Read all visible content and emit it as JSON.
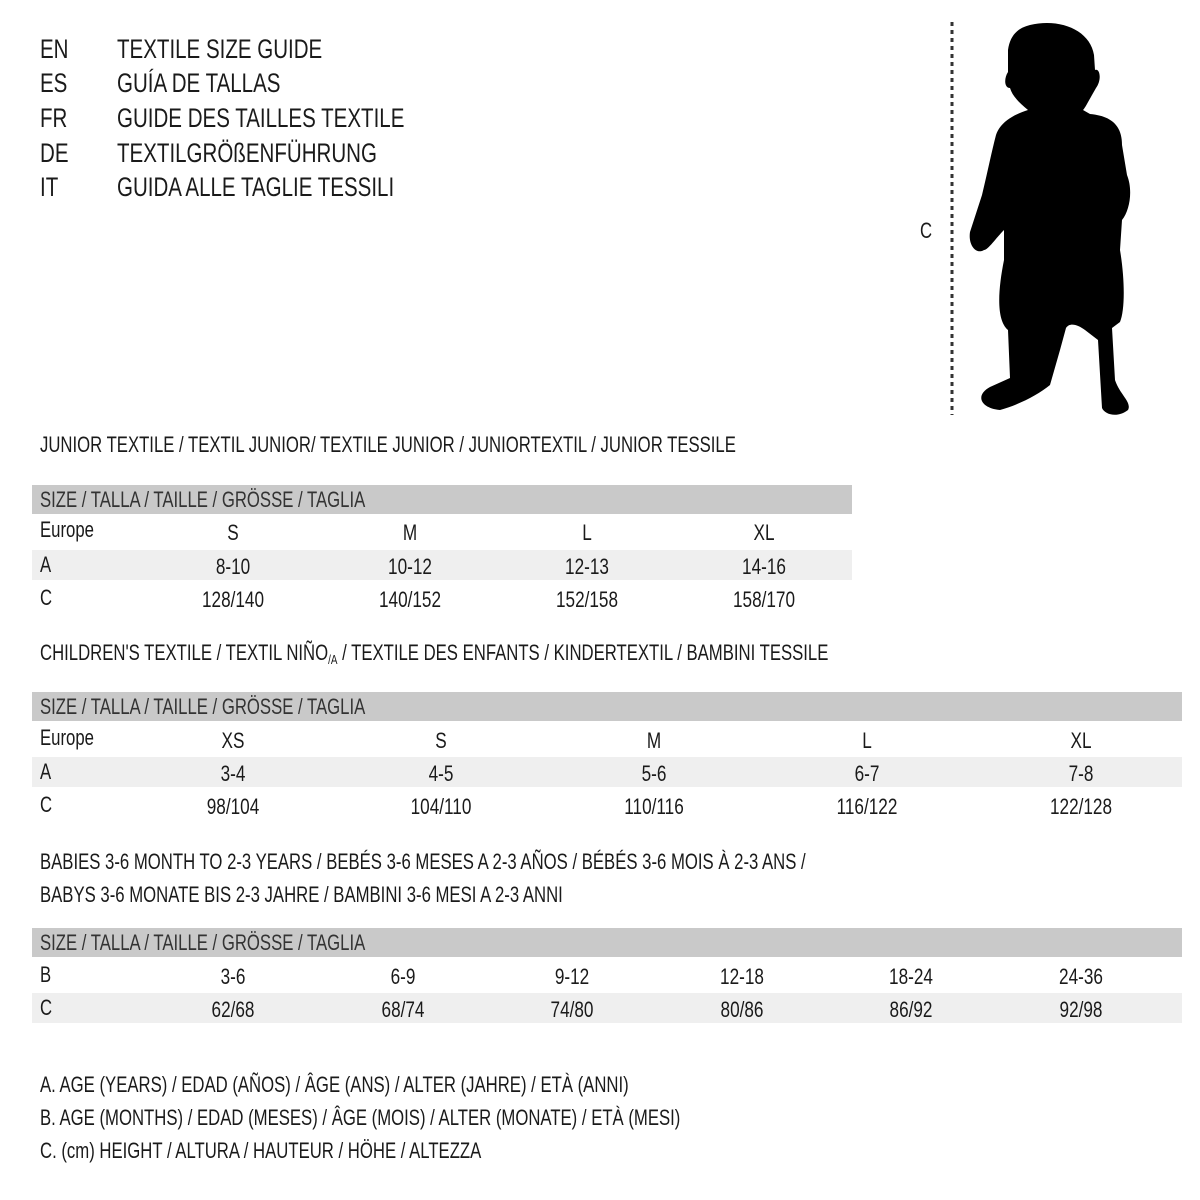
{
  "title_rows": [
    {
      "code": "EN",
      "text": "TEXTILE SIZE GUIDE"
    },
    {
      "code": "ES",
      "text": "GUÍA DE TALLAS"
    },
    {
      "code": "FR",
      "text": "GUIDE DES TAILLES TEXTILE"
    },
    {
      "code": "DE",
      "text": "TEXTILGRÖßENFÜHRUNG"
    },
    {
      "code": "IT",
      "text": "GUIDA ALLE TAGLIE TESSILI"
    }
  ],
  "figure": {
    "label": "C",
    "icon": "child-silhouette-icon"
  },
  "size_header": "SIZE / TALLA / TAILLE / GRÖSSE / TAGLIA",
  "junior": {
    "heading": "JUNIOR TEXTILE / TEXTIL JUNIOR/ TEXTILE JUNIOR / JUNIORTEXTIL / JUNIOR TESSILE",
    "rows": [
      {
        "label": "Europe",
        "values": [
          "S",
          "M",
          "L",
          "XL"
        ]
      },
      {
        "label": "A",
        "values": [
          "8-10",
          "10-12",
          "12-13",
          "14-16"
        ]
      },
      {
        "label": "C",
        "values": [
          "128/140",
          "140/152",
          "152/158",
          "158/170"
        ]
      }
    ]
  },
  "children": {
    "heading_a": "CHILDREN'S TEXTILE / TEXTIL NIÑO",
    "heading_sub": "/A",
    "heading_b": " / TEXTILE DES ENFANTS / KINDERTEXTIL / BAMBINI TESSILE",
    "rows": [
      {
        "label": "Europe",
        "values": [
          "XS",
          "S",
          "M",
          "L",
          "XL"
        ]
      },
      {
        "label": "A",
        "values": [
          "3-4",
          "4-5",
          "5-6",
          "6-7",
          "7-8"
        ]
      },
      {
        "label": "C",
        "values": [
          "98/104",
          "104/110",
          "110/116",
          "116/122",
          "122/128"
        ]
      }
    ]
  },
  "babies": {
    "heading_line1": "BABIES 3-6 MONTH TO 2-3 YEARS / BEBÉS 3-6 MESES A 2-3 AÑOS / BÉBÉS 3-6 MOIS À 2-3 ANS /",
    "heading_line2": "BABYS 3-6 MONATE BIS 2-3 JAHRE / BAMBINI 3-6 MESI A 2-3 ANNI",
    "rows": [
      {
        "label": "B",
        "values": [
          "3-6",
          "6-9",
          "9-12",
          "12-18",
          "18-24",
          "24-36"
        ]
      },
      {
        "label": "C",
        "values": [
          "62/68",
          "68/74",
          "74/80",
          "80/86",
          "86/92",
          "92/98"
        ]
      }
    ]
  },
  "legend": [
    "A. AGE (YEARS) / EDAD (AÑOS) / ÂGE (ANS) / ALTER (JAHRE) / ETÀ (ANNI)",
    "B. AGE (MONTHS) / EDAD (MESES) / ÂGE (MOIS) / ALTER (MONATE) / ETÀ (MESI)",
    "C. (cm) HEIGHT / ALTURA / HAUTEUR / HÖHE / ALTEZZA"
  ],
  "colors": {
    "header_bar": "#c9c9c9",
    "row_shade": "#efefef",
    "text": "#1a1a1a"
  }
}
